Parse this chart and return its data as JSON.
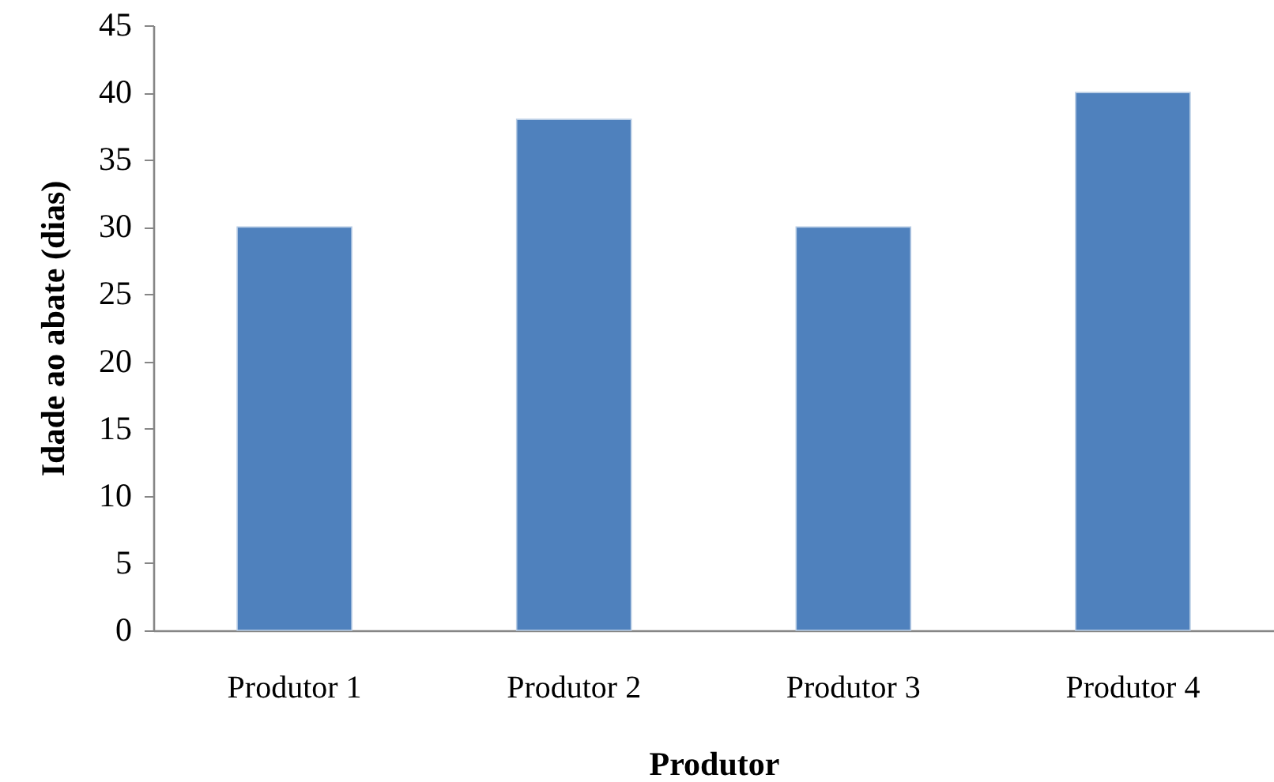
{
  "chart_data": {
    "type": "bar",
    "xlabel": "Produtor",
    "ylabel": "Idade ao abate (dias)",
    "categories": [
      "Produtor 1",
      "Produtor 2",
      "Produtor 3",
      "Produtor 4"
    ],
    "values": [
      30,
      38,
      30,
      40
    ],
    "color": "#4f81bd",
    "ylim": [
      0,
      45
    ],
    "yticks": [
      0,
      5,
      10,
      15,
      20,
      25,
      30,
      35,
      40,
      45
    ]
  }
}
